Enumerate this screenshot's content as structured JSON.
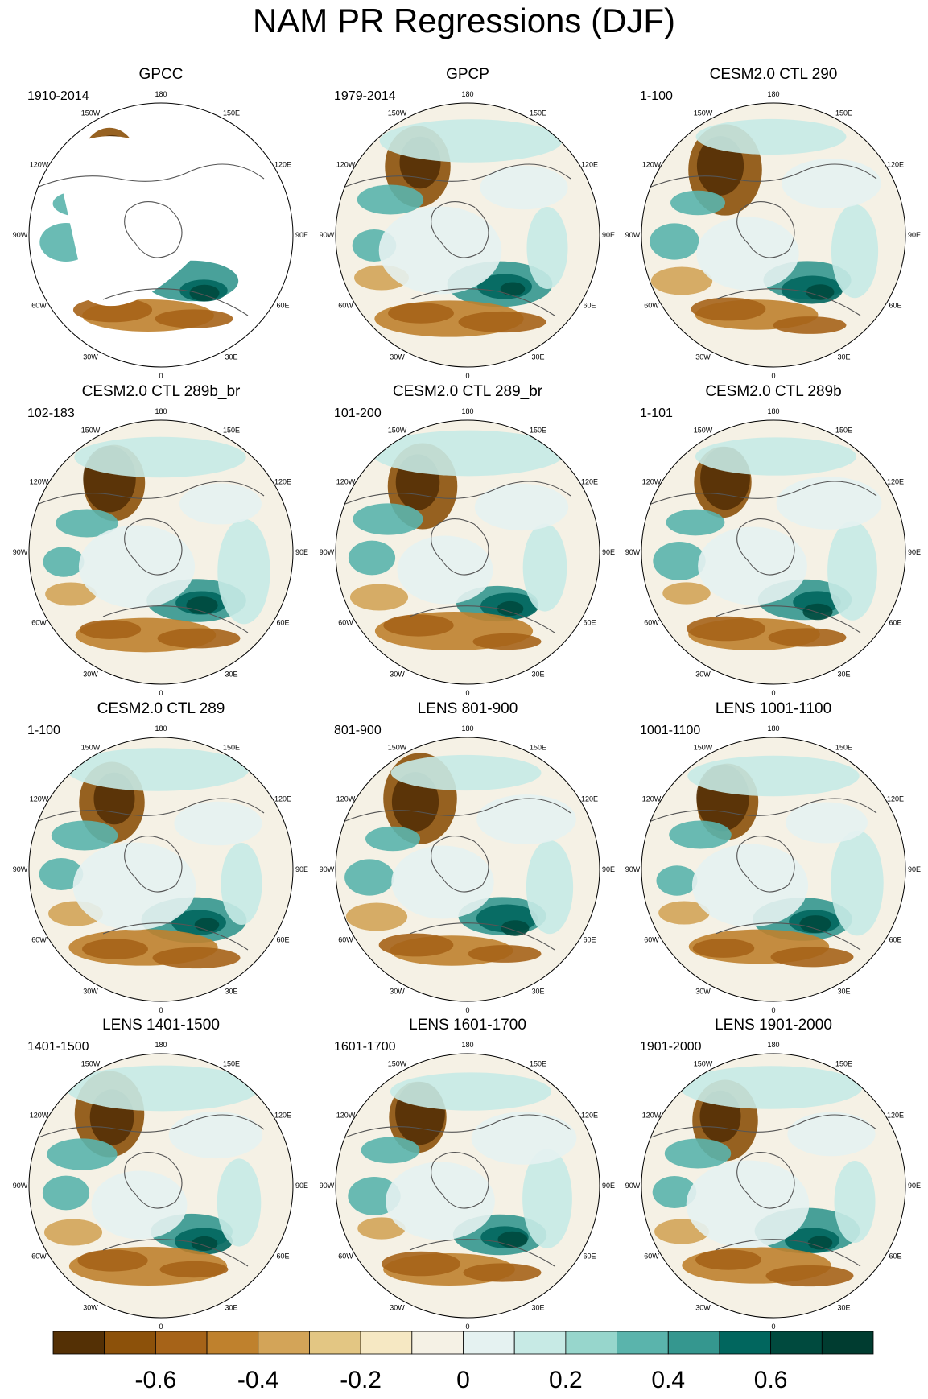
{
  "title": "NAM PR Regressions (DJF)",
  "lon_labels": [
    "180",
    "150E",
    "120E",
    "90E",
    "60E",
    "30E",
    "0",
    "30W",
    "60W",
    "90W",
    "120W",
    "150W"
  ],
  "colorbar": {
    "colors": [
      "#543005",
      "#8c510a",
      "#a66318",
      "#bf812d",
      "#d3a458",
      "#e3c683",
      "#f6e8c3",
      "#f5f1e5",
      "#e5f2f1",
      "#c7eae5",
      "#97d6cc",
      "#5ab4ac",
      "#35978f",
      "#01665e",
      "#004a3e",
      "#003c30"
    ],
    "tick_labels": [
      "-0.6",
      "-0.4",
      "-0.2",
      "0",
      "0.2",
      "0.4",
      "0.6"
    ]
  },
  "chart_data": [
    {
      "type": "heatmap",
      "title": "GPCC",
      "period": "1910-2014"
    },
    {
      "type": "heatmap",
      "title": "GPCP",
      "period": "1979-2014"
    },
    {
      "type": "heatmap",
      "title": "CESM2.0 CTL 290",
      "period": "1-100"
    },
    {
      "type": "heatmap",
      "title": "CESM2.0 CTL 289b_br",
      "period": "102-183"
    },
    {
      "type": "heatmap",
      "title": "CESM2.0 CTL 289_br",
      "period": "101-200"
    },
    {
      "type": "heatmap",
      "title": "CESM2.0 CTL 289b",
      "period": "1-101"
    },
    {
      "type": "heatmap",
      "title": "CESM2.0 CTL 289",
      "period": "1-100"
    },
    {
      "type": "heatmap",
      "title": "LENS 801-900",
      "period": "801-900"
    },
    {
      "type": "heatmap",
      "title": "LENS 1001-1100",
      "period": "1001-1100"
    },
    {
      "type": "heatmap",
      "title": "LENS 1401-1500",
      "period": "1401-1500"
    },
    {
      "type": "heatmap",
      "title": "LENS 1601-1700",
      "period": "1601-1700"
    },
    {
      "type": "heatmap",
      "title": "LENS 1901-2000",
      "period": "1901-2000"
    }
  ]
}
